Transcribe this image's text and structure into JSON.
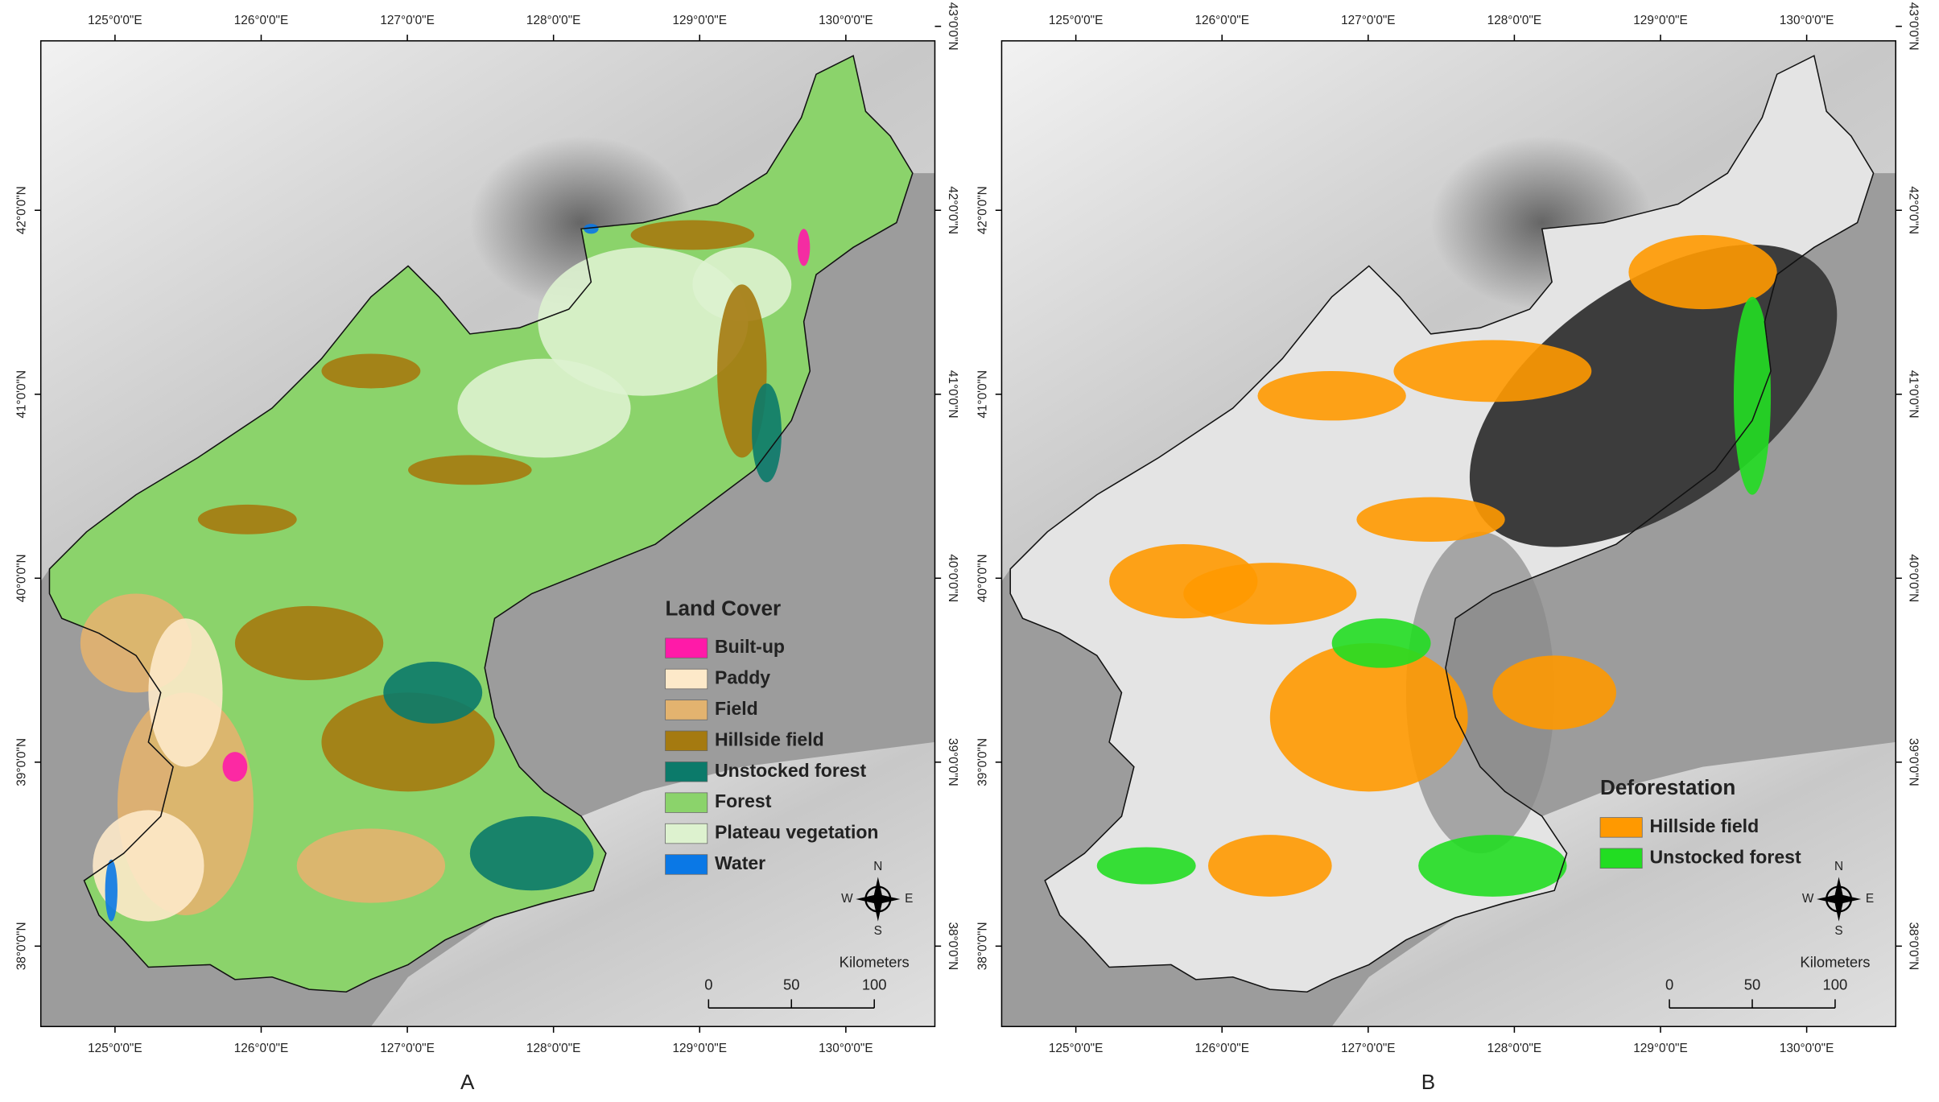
{
  "panels": [
    {
      "caption": "A",
      "lon_labels": [
        {
          "value": 125,
          "label": "125°0'0\"E"
        },
        {
          "value": 126,
          "label": "126°0'0\"E"
        },
        {
          "value": 127,
          "label": "127°0'0\"E"
        },
        {
          "value": 128,
          "label": "128°0'0\"E"
        },
        {
          "value": 129,
          "label": "129°0'0\"E"
        },
        {
          "value": 130,
          "label": "130°0'0\"E"
        }
      ],
      "lat_labels_left": [
        {
          "value": 38,
          "label": "38°0'0\"N"
        },
        {
          "value": 39,
          "label": "39°0'0\"N"
        },
        {
          "value": 40,
          "label": "40°0'0\"N"
        },
        {
          "value": 41,
          "label": "41°0'0\"N"
        },
        {
          "value": 42,
          "label": "42°0'0\"N"
        }
      ],
      "lat_labels_right": [
        {
          "value": 38,
          "label": "38°0'0\"N"
        },
        {
          "value": 39,
          "label": "39°0'0\"N"
        },
        {
          "value": 40,
          "label": "40°0'0\"N"
        },
        {
          "value": 41,
          "label": "41°0'0\"N"
        },
        {
          "value": 42,
          "label": "42°0'0\"N"
        },
        {
          "value": 43,
          "label": "43°0'0\"N"
        }
      ],
      "legend": {
        "title": "Land Cover",
        "items": [
          {
            "label": "Built-up",
            "color": "#ff1aa8"
          },
          {
            "label": "Paddy",
            "color": "#fde9c9"
          },
          {
            "label": "Field",
            "color": "#e3b36f"
          },
          {
            "label": "Hillside field",
            "color": "#a57a10"
          },
          {
            "label": "Unstocked forest",
            "color": "#0b7a6a"
          },
          {
            "label": "Forest",
            "color": "#8bd36b"
          },
          {
            "label": "Plateau vegetation",
            "color": "#ddf2cf"
          },
          {
            "label": "Water",
            "color": "#0a78e6"
          }
        ]
      },
      "compass": {
        "n": "N",
        "s": "S",
        "w": "W",
        "e": "E"
      },
      "scale": {
        "unit": "Kilometers",
        "ticks": [
          0,
          50,
          100
        ]
      }
    },
    {
      "caption": "B",
      "lon_labels": [
        {
          "value": 125,
          "label": "125°0'0\"E"
        },
        {
          "value": 126,
          "label": "126°0'0\"E"
        },
        {
          "value": 127,
          "label": "127°0'0\"E"
        },
        {
          "value": 128,
          "label": "128°0'0\"E"
        },
        {
          "value": 129,
          "label": "129°0'0\"E"
        },
        {
          "value": 130,
          "label": "130°0'0\"E"
        }
      ],
      "lat_labels_left": [
        {
          "value": 38,
          "label": "38°0'0\"N"
        },
        {
          "value": 39,
          "label": "39°0'0\"N"
        },
        {
          "value": 40,
          "label": "40°0'0\"N"
        },
        {
          "value": 41,
          "label": "41°0'0\"N"
        },
        {
          "value": 42,
          "label": "42°0'0\"N"
        }
      ],
      "lat_labels_right": [
        {
          "value": 38,
          "label": "38°0'0\"N"
        },
        {
          "value": 39,
          "label": "39°0'0\"N"
        },
        {
          "value": 40,
          "label": "40°0'0\"N"
        },
        {
          "value": 41,
          "label": "41°0'0\"N"
        },
        {
          "value": 42,
          "label": "42°0'0\"N"
        },
        {
          "value": 43,
          "label": "43°0'0\"N"
        }
      ],
      "legend": {
        "title": "Deforestation",
        "items": [
          {
            "label": "Hillside field",
            "color": "#ff9900"
          },
          {
            "label": "Unstocked forest",
            "color": "#22dd22"
          }
        ]
      },
      "compass": {
        "n": "N",
        "s": "S",
        "w": "W",
        "e": "E"
      },
      "scale": {
        "unit": "Kilometers",
        "ticks": [
          0,
          50,
          100
        ]
      }
    }
  ]
}
